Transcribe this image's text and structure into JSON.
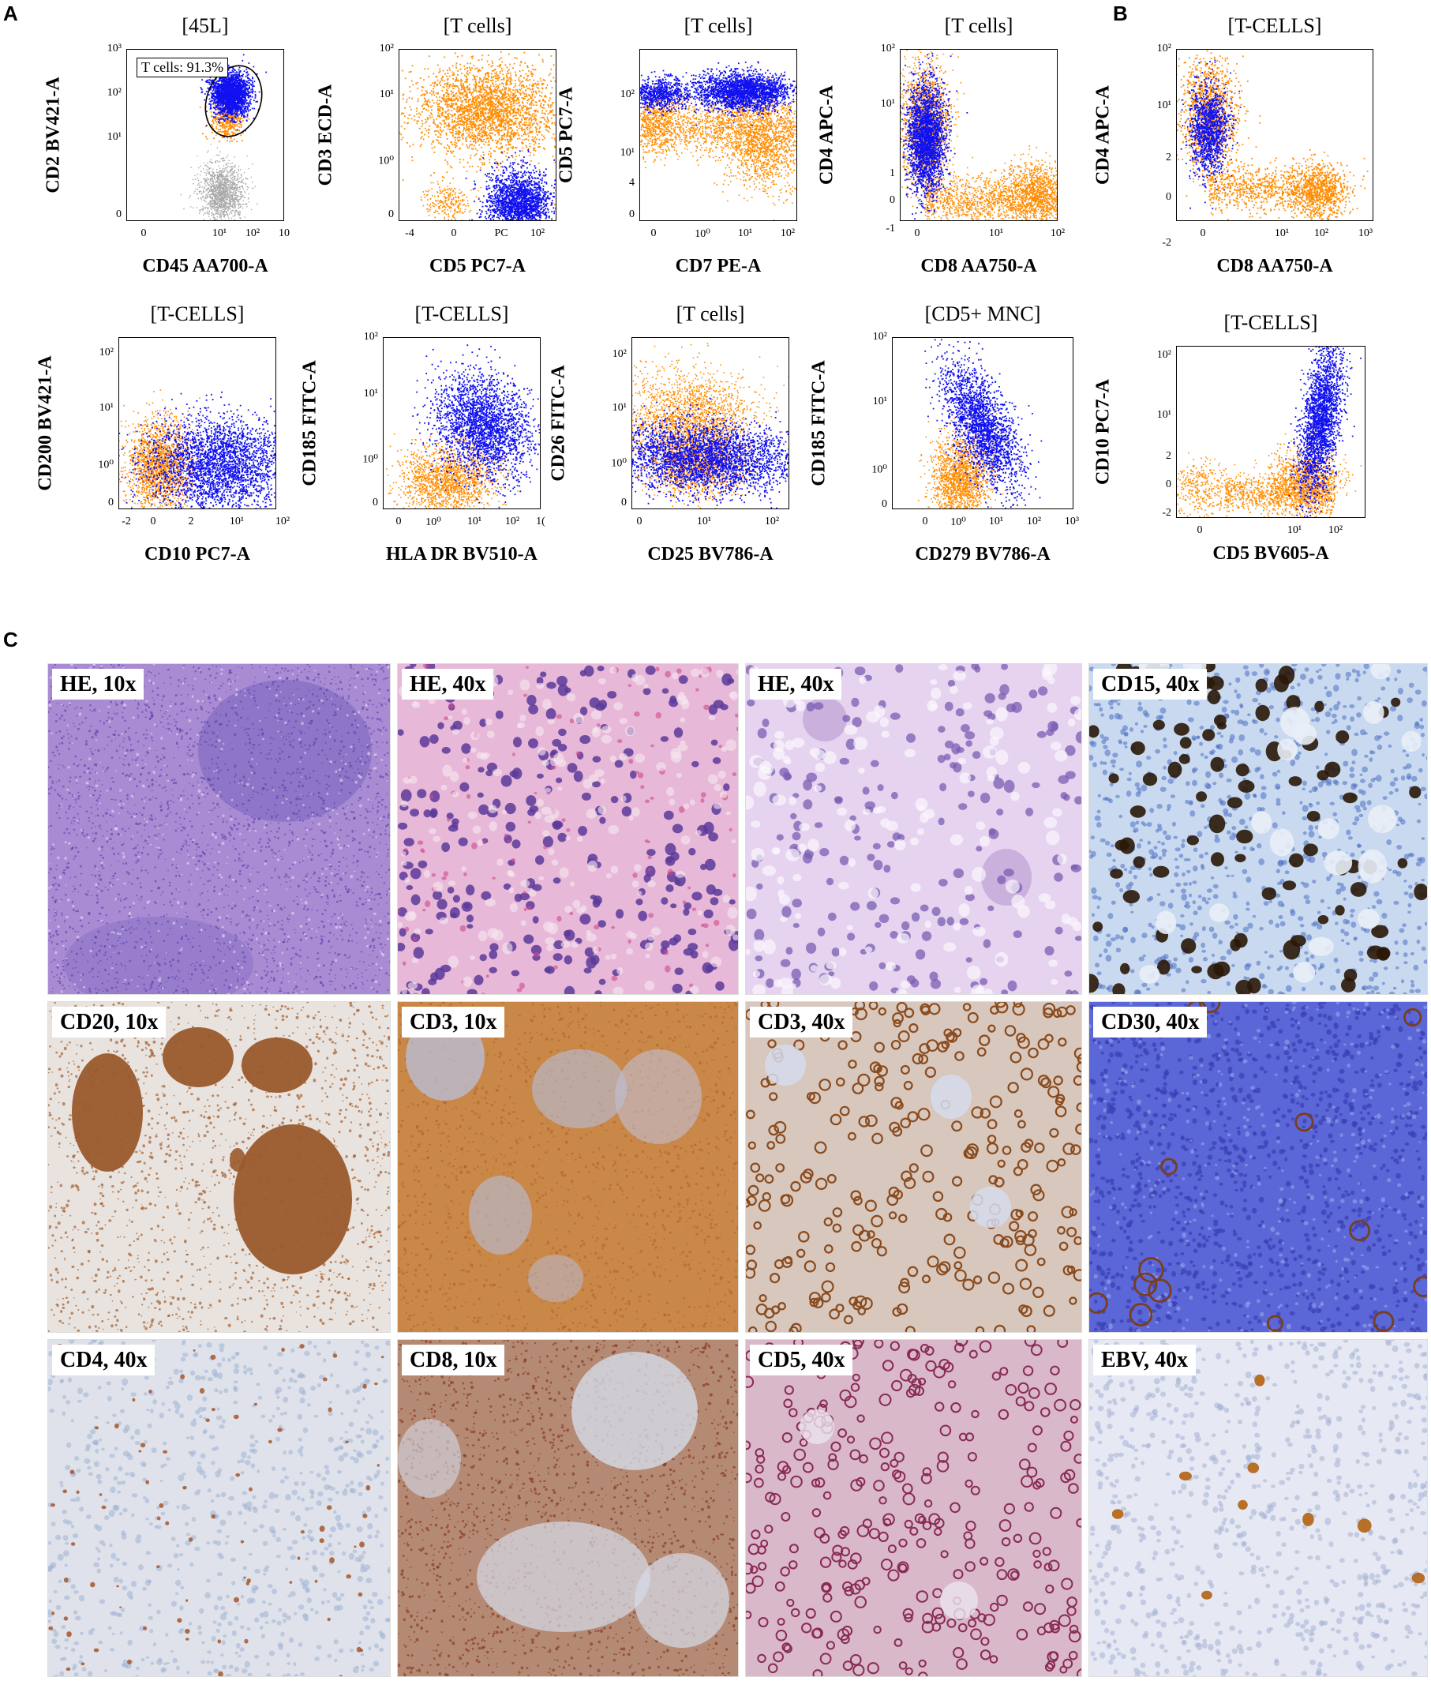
{
  "panel_labels": {
    "a": "A",
    "b": "B",
    "c": "C"
  },
  "gate_annotation": "T cells: 91.3%",
  "flow_plots": [
    {
      "key": "p1",
      "title": "[45L]",
      "ylabel": "CD2 BV421-A",
      "xlabel": "CD45 AA700-A",
      "yticks": [
        "10³",
        "10²",
        "10¹",
        "0"
      ],
      "xticks": [
        "0",
        "10¹",
        "10²",
        "10"
      ]
    },
    {
      "key": "p2",
      "title": "[T cells]",
      "ylabel": "CD3 ECD-A",
      "xlabel": "CD5 PC7-A",
      "yticks": [
        "10²",
        "10¹",
        "10⁰",
        "0"
      ],
      "xticks": [
        "-4",
        "0",
        "PC",
        "10²"
      ]
    },
    {
      "key": "p3",
      "title": "[T cells]",
      "ylabel": "CD5 PC7-A",
      "xlabel": "CD7 PE-A",
      "yticks": [
        "10²",
        "10¹",
        "4",
        "0"
      ],
      "xticks": [
        "0",
        "10⁰",
        "10¹",
        "10²"
      ]
    },
    {
      "key": "p4",
      "title": "[T cells]",
      "ylabel": "CD4 APC-A",
      "xlabel": "CD8 AA750-A",
      "yticks": [
        "10²",
        "10¹",
        "1",
        "0",
        "-1"
      ],
      "xticks": [
        "0",
        "10¹",
        "10²"
      ]
    },
    {
      "key": "p5",
      "title": "[T-CELLS]",
      "ylabel": "CD4 APC-A",
      "xlabel": "CD8 AA750-A",
      "yticks": [
        "10²",
        "10¹",
        "2",
        "0",
        "-2"
      ],
      "xticks": [
        "0",
        "10¹",
        "10²",
        "10³"
      ]
    },
    {
      "key": "p6",
      "title": "[T-CELLS]",
      "ylabel": "CD200 BV421-A",
      "xlabel": "CD10 PC7-A",
      "yticks": [
        "10²",
        "10¹",
        "10⁰",
        "0"
      ],
      "xticks": [
        "-2",
        "0",
        "2",
        "10¹",
        "10²"
      ]
    },
    {
      "key": "p7",
      "title": "[T-CELLS]",
      "ylabel": "CD185 FITC-A",
      "xlabel": "HLA DR BV510-A",
      "yticks": [
        "10²",
        "10¹",
        "10⁰",
        "0"
      ],
      "xticks": [
        "0",
        "10⁰",
        "10¹",
        "10²",
        "1("
      ]
    },
    {
      "key": "p8",
      "title": "[T cells]",
      "ylabel": "CD26 FITC-A",
      "xlabel": "CD25 BV786-A",
      "yticks": [
        "10²",
        "10¹",
        "10⁰",
        "0"
      ],
      "xticks": [
        "0",
        "10¹",
        "10²"
      ]
    },
    {
      "key": "p9",
      "title": "[CD5+ MNC]",
      "ylabel": "CD185 FITC-A",
      "xlabel": "CD279 BV786-A",
      "yticks": [
        "10²",
        "10¹",
        "10⁰",
        "0"
      ],
      "xticks": [
        "0",
        "10⁰",
        "10¹",
        "10²",
        "10³"
      ]
    },
    {
      "key": "p10",
      "title": "[T-CELLS]",
      "ylabel": "CD10 PC7-A",
      "xlabel": "CD5 BV605-A",
      "yticks": [
        "10²",
        "10¹",
        "2",
        "0",
        "-2"
      ],
      "xticks": [
        "0",
        "10¹",
        "10²"
      ]
    }
  ],
  "histology": [
    {
      "label": "HE, 10x",
      "stain": "he-low"
    },
    {
      "label": "HE, 40x",
      "stain": "he-high"
    },
    {
      "label": "HE, 40x",
      "stain": "he-high2"
    },
    {
      "label": "CD15, 40x",
      "stain": "ihc-scatter"
    },
    {
      "label": "CD20, 10x",
      "stain": "ihc-follicle"
    },
    {
      "label": "CD3, 10x",
      "stain": "ihc-diffuse"
    },
    {
      "label": "CD3, 40x",
      "stain": "ihc-membrane"
    },
    {
      "label": "CD30, 40x",
      "stain": "ihc-rare"
    },
    {
      "label": "CD4, 40x",
      "stain": "ihc-sparse"
    },
    {
      "label": "CD8, 10x",
      "stain": "ihc-dense"
    },
    {
      "label": "CD5, 40x",
      "stain": "ihc-membrane-red"
    },
    {
      "label": "EBV, 40x",
      "stain": "ihc-rare-brown"
    }
  ],
  "colors": {
    "orange": "#ff8c00",
    "blue": "#1010f0",
    "gray": "#a8a8a8",
    "he_purple": "#a886d2",
    "ihc_brown": "#8b4513",
    "hema_blue": "#9fb4dd"
  }
}
